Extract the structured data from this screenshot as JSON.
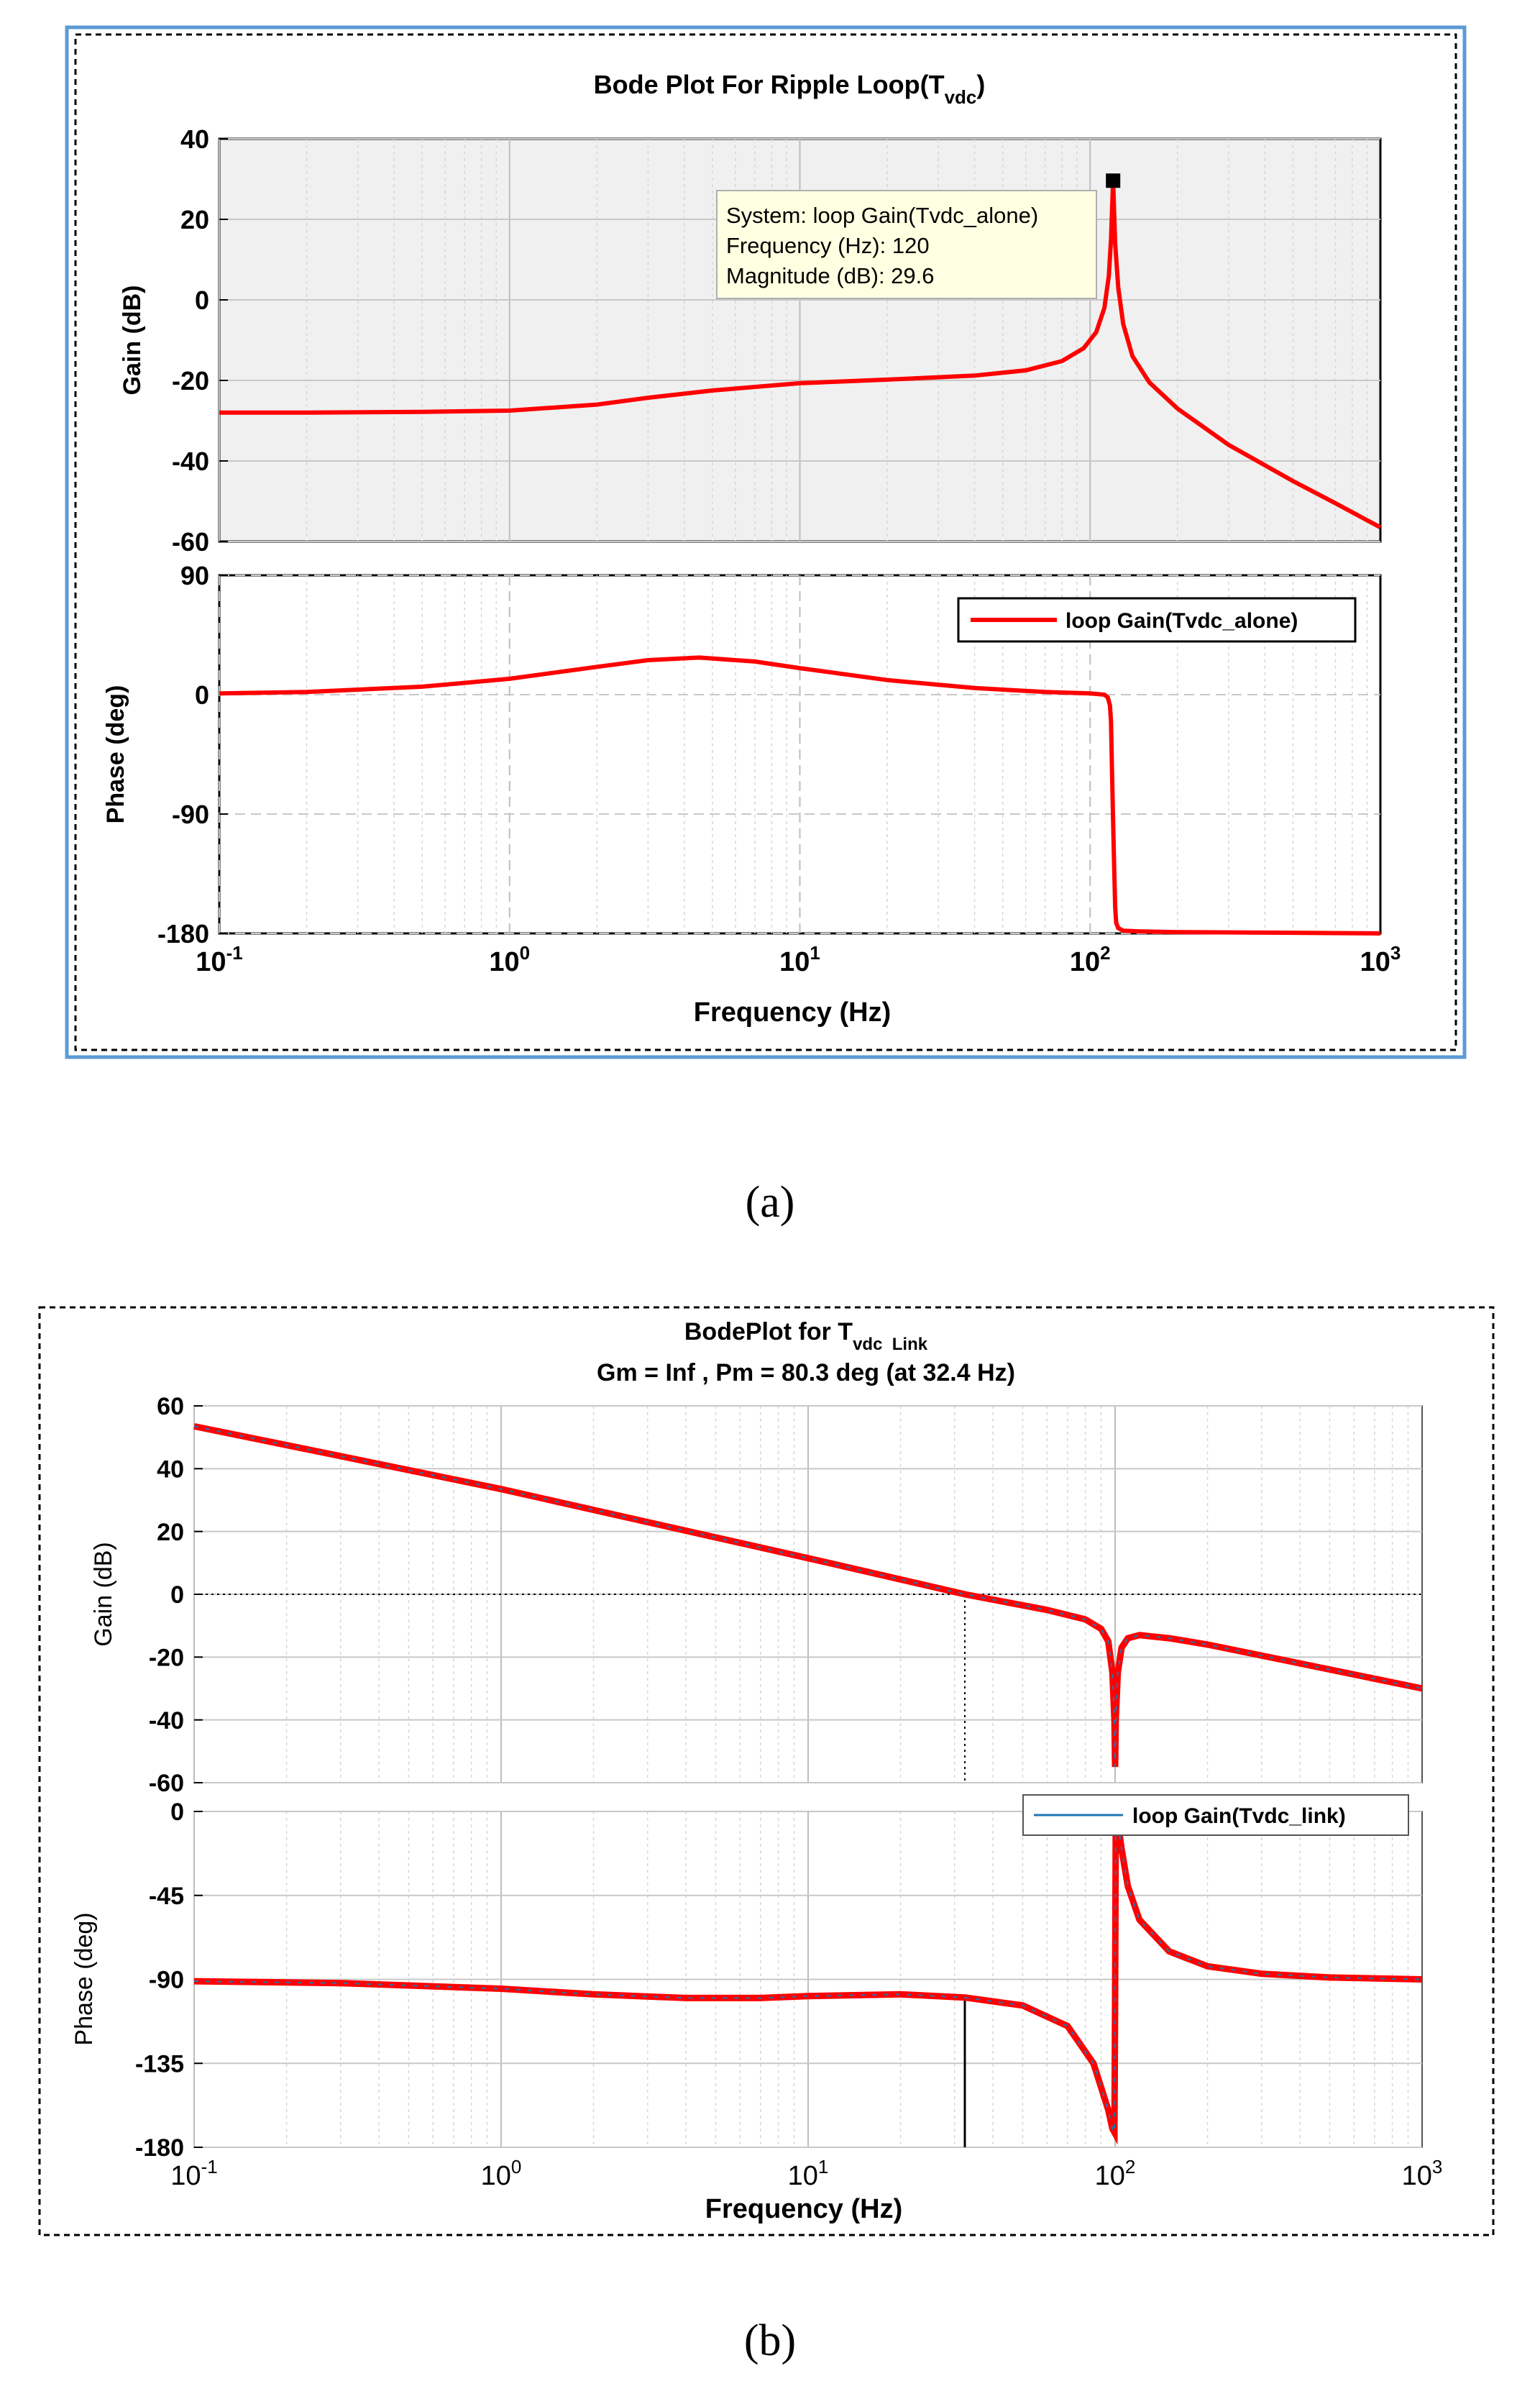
{
  "colors": {
    "curve": "#ff0000",
    "legend_line_b": "#1f77b4",
    "frame_blue": "#5b9bd5",
    "gain_bg_a": "#f0f0f0",
    "grid": "#c8c8c8",
    "axis": "#000000"
  },
  "chart_data": [
    {
      "type": "line",
      "panel": "(a)",
      "caption": "(a)",
      "title": "Bode Plot For Ripple Loop(T",
      "title_subscript": "vdc",
      "title_suffix": ")",
      "xscale": "log",
      "xlim": [
        0.1,
        1000
      ],
      "xlabel": "Frequency  (Hz)",
      "xtick_base": "10",
      "xtick_exponents": [
        "-1",
        "0",
        "1",
        "2",
        "3"
      ],
      "magnitude": {
        "ylabel": "Gain (dB)",
        "ylim": [
          -60,
          40
        ],
        "yticks": [
          "40",
          "20",
          "0",
          "-20",
          "-40",
          "-60"
        ],
        "x": [
          0.1,
          0.2,
          0.5,
          1,
          2,
          3,
          5,
          10,
          20,
          40,
          60,
          80,
          95,
          105,
          112,
          116,
          118,
          119.5,
          120,
          120.5,
          122,
          125,
          130,
          140,
          160,
          200,
          300,
          500,
          700,
          1000
        ],
        "y": [
          -28,
          -28,
          -27.8,
          -27.5,
          -26,
          -24.3,
          -22.5,
          -20.7,
          -19.8,
          -18.8,
          -17.5,
          -15.2,
          -12,
          -8,
          -2,
          6,
          15,
          26,
          29.6,
          26,
          14,
          3,
          -6,
          -14,
          -20.5,
          -27,
          -36,
          -45,
          -50.5,
          -56.5
        ],
        "annotation": {
          "system": "System: loop Gain(Tvdc_alone)",
          "frequency": "Frequency (Hz): 120",
          "magnitude": "Magnitude (dB): 29.6",
          "marker_x": 120,
          "marker_y": 29.6
        }
      },
      "phase": {
        "ylabel": "Phase (deg)",
        "ylim": [
          -180,
          90
        ],
        "yticks": [
          "90",
          "0",
          "-90",
          "-180"
        ],
        "x": [
          0.1,
          0.2,
          0.5,
          1,
          2,
          3,
          4.5,
          7,
          10,
          20,
          40,
          70,
          100,
          112,
          115,
          117,
          118,
          119,
          120,
          121,
          122,
          123,
          125,
          130,
          150,
          200,
          500,
          1000
        ],
        "y": [
          1,
          2,
          6,
          12,
          21,
          26,
          28,
          25,
          20,
          11,
          5,
          2,
          1,
          0,
          -2,
          -8,
          -20,
          -60,
          -95,
          -130,
          -160,
          -172,
          -176,
          -178,
          -178.5,
          -179,
          -179.5,
          -180
        ],
        "legend": "loop Gain(Tvdc_alone)"
      }
    },
    {
      "type": "line",
      "panel": "(b)",
      "caption": "(b)",
      "title": "BodePlot for T",
      "title_subscript": "vdc  Link",
      "subtitle": "Gm = Inf ,  Pm = 80.3 deg (at 32.4 Hz)",
      "xscale": "log",
      "xlim": [
        0.1,
        1000
      ],
      "xlabel": "Frequency  (Hz)",
      "xtick_base": "10",
      "xtick_exponents": [
        "-1",
        "0",
        "1",
        "2",
        "3"
      ],
      "crossover_hz": 32.4,
      "magnitude": {
        "ylabel": "Gain (dB)",
        "ylim": [
          -60,
          60
        ],
        "yticks": [
          "60",
          "40",
          "20",
          "0",
          "-20",
          "-40",
          "-60"
        ],
        "x": [
          0.1,
          0.3,
          1,
          3,
          10,
          32.4,
          60,
          80,
          90,
          95,
          98,
          99.5,
          100,
          100.5,
          102,
          105,
          110,
          120,
          150,
          200,
          400,
          1000
        ],
        "y": [
          53.5,
          44,
          33.5,
          23,
          11.5,
          0,
          -5,
          -8,
          -11,
          -15,
          -25,
          -40,
          -55,
          -40,
          -25,
          -17,
          -14,
          -13,
          -14,
          -16,
          -22,
          -30
        ],
        "gain_crossover_marker_x": 32.4
      },
      "phase": {
        "ylabel": "Phase (deg)",
        "ylim": [
          -180,
          0
        ],
        "yticks": [
          "0",
          "-45",
          "-90",
          "-135",
          "-180"
        ],
        "x": [
          0.1,
          0.3,
          1,
          2,
          4,
          7,
          10,
          20,
          32.4,
          50,
          70,
          85,
          95,
          98,
          99.5,
          100,
          100.5,
          102,
          105,
          110,
          120,
          150,
          200,
          300,
          500,
          1000
        ],
        "y": [
          -91,
          -92,
          -95,
          -98,
          -100,
          -100,
          -99,
          -98,
          -99.7,
          -104,
          -115,
          -135,
          -160,
          -170,
          -172,
          -100,
          -10,
          -5,
          -20,
          -40,
          -58,
          -75,
          -83,
          -87,
          -89,
          -90
        ],
        "legend": "loop Gain(Tvdc_link)"
      }
    }
  ]
}
